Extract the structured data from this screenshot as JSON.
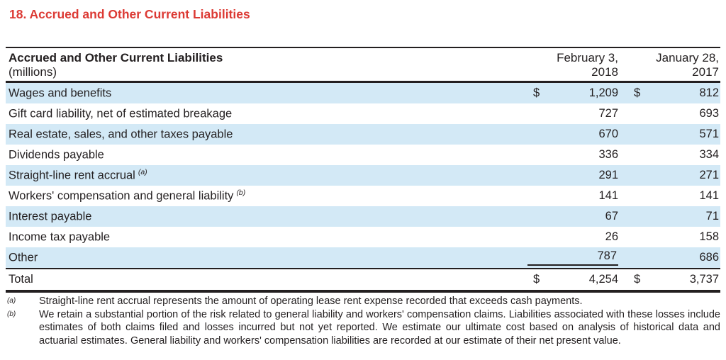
{
  "page": {
    "title": "18. Accrued and Other Current Liabilities"
  },
  "colors": {
    "accent_red": "#dc3a34",
    "row_highlight_blue": "#d3e9f6",
    "rule_black": "#231f20"
  },
  "table": {
    "header": {
      "title": "Accrued and Other Current Liabilities",
      "subtitle": "(millions)",
      "columns": [
        {
          "line1": "February 3,",
          "line2": "2018"
        },
        {
          "line1": "January 28,",
          "line2": "2017"
        }
      ]
    },
    "rows": [
      {
        "label": "Wages and benefits",
        "note": "",
        "d1": "$",
        "val1": "1,209",
        "d2": "$",
        "val2": "812"
      },
      {
        "label": "Gift card liability, net of estimated breakage",
        "note": "",
        "d1": "",
        "val1": "727",
        "d2": "",
        "val2": "693"
      },
      {
        "label": "Real estate, sales, and other taxes payable",
        "note": "",
        "d1": "",
        "val1": "670",
        "d2": "",
        "val2": "571"
      },
      {
        "label": "Dividends payable",
        "note": "",
        "d1": "",
        "val1": "336",
        "d2": "",
        "val2": "334"
      },
      {
        "label": "Straight-line rent accrual",
        "note": "(a)",
        "d1": "",
        "val1": "291",
        "d2": "",
        "val2": "271"
      },
      {
        "label": "Workers' compensation and general liability",
        "note": "(b)",
        "d1": "",
        "val1": "141",
        "d2": "",
        "val2": "141"
      },
      {
        "label": "Interest payable",
        "note": "",
        "d1": "",
        "val1": "67",
        "d2": "",
        "val2": "71"
      },
      {
        "label": "Income tax payable",
        "note": "",
        "d1": "",
        "val1": "26",
        "d2": "",
        "val2": "158"
      },
      {
        "label": "Other",
        "note": "",
        "d1": "",
        "val1": "787",
        "d2": "",
        "val2": "686"
      }
    ],
    "total": {
      "label": "Total",
      "d1": "$",
      "val1": "4,254",
      "d2": "$",
      "val2": "3,737"
    }
  },
  "footnotes": [
    {
      "marker": "(a)",
      "text": "Straight-line rent accrual represents the amount of operating lease rent expense recorded that exceeds cash payments."
    },
    {
      "marker": "(b)",
      "text": "We retain a substantial portion of the risk related to general liability and workers' compensation claims. Liabilities associated with these losses include estimates of both claims filed and losses incurred but not yet reported. We estimate our ultimate cost based on analysis of historical data and actuarial estimates. General liability and workers' compensation liabilities are recorded at our estimate of their net present value."
    }
  ]
}
